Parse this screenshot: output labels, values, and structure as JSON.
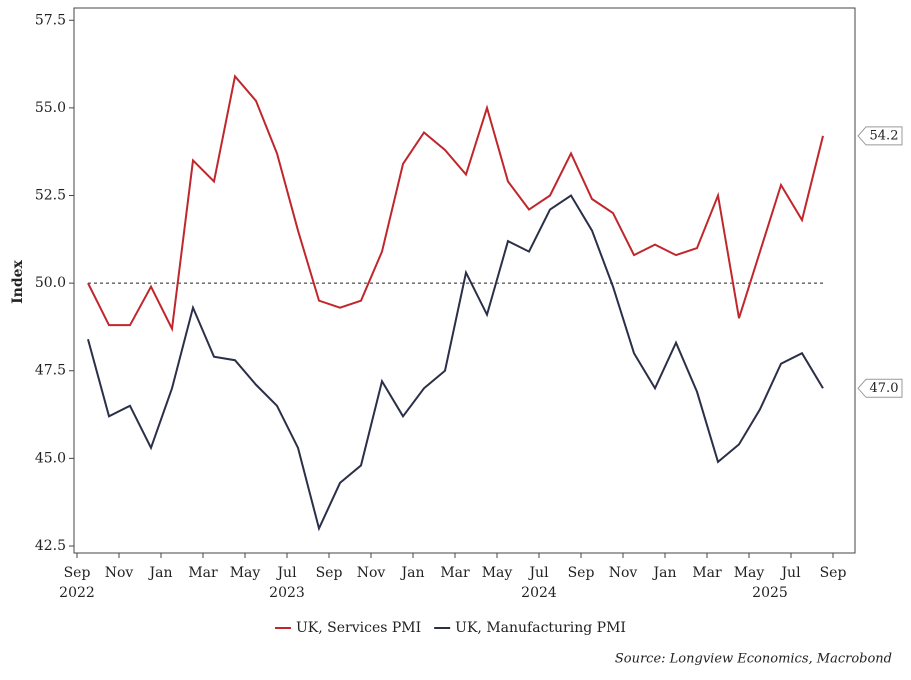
{
  "chart_data": {
    "type": "line",
    "y_label": "Index",
    "source": "Source: Longview Economics, Macrobond",
    "categories": [
      "Sep",
      null,
      "Nov",
      null,
      "Jan",
      null,
      "Mar",
      null,
      "May",
      null,
      "Jul",
      null,
      "Sep",
      null,
      "Nov",
      null,
      "Jan",
      null,
      "Mar",
      null,
      "May",
      null,
      "Jul",
      null,
      "Sep",
      null,
      "Nov",
      null,
      "Jan",
      null,
      "Mar",
      null,
      "May",
      null,
      "Jul",
      null,
      "Sep"
    ],
    "years": [
      "2022",
      null,
      null,
      null,
      null,
      null,
      null,
      null,
      null,
      null,
      "2023",
      null,
      null,
      null,
      null,
      null,
      null,
      null,
      null,
      null,
      null,
      null,
      "2024",
      null,
      null,
      null,
      null,
      null,
      null,
      null,
      null,
      null,
      null,
      "2025",
      null,
      null,
      null
    ],
    "series": [
      {
        "name": "UK, Services PMI",
        "color": "#c0272d",
        "end_label": "54.2",
        "values": [
          50.0,
          48.8,
          48.8,
          49.9,
          48.7,
          53.5,
          52.9,
          55.9,
          55.2,
          53.7,
          51.5,
          49.5,
          49.3,
          49.5,
          50.9,
          53.4,
          54.3,
          53.8,
          53.1,
          55.0,
          52.9,
          52.1,
          52.5,
          53.7,
          52.4,
          52.0,
          50.8,
          51.1,
          50.8,
          51.0,
          52.5,
          49.0,
          50.9,
          52.8,
          51.8,
          54.2,
          null
        ]
      },
      {
        "name": "UK, Manufacturing PMI",
        "color": "#2b2f48",
        "end_label": "47.0",
        "values": [
          48.4,
          46.2,
          46.5,
          45.3,
          47.0,
          49.3,
          47.9,
          47.8,
          47.1,
          46.5,
          45.3,
          43.0,
          44.3,
          44.8,
          47.2,
          46.2,
          47.0,
          47.5,
          50.3,
          49.1,
          51.2,
          50.9,
          52.1,
          52.5,
          51.5,
          49.9,
          48.0,
          47.0,
          48.3,
          46.9,
          44.9,
          45.4,
          46.4,
          47.7,
          48.0,
          47.0,
          null
        ]
      }
    ],
    "reference_line": 50,
    "ylim": [
      42.3,
      57.85
    ],
    "yticks": [
      {
        "value": 42.5,
        "label": "42.5"
      },
      {
        "value": 45,
        "label": "45.0"
      },
      {
        "value": 47.5,
        "label": "47.5"
      },
      {
        "value": 50,
        "label": "50.0"
      },
      {
        "value": 52.5,
        "label": "52.5"
      },
      {
        "value": 55,
        "label": "55.0"
      },
      {
        "value": 57.5,
        "label": "57.5"
      }
    ]
  }
}
